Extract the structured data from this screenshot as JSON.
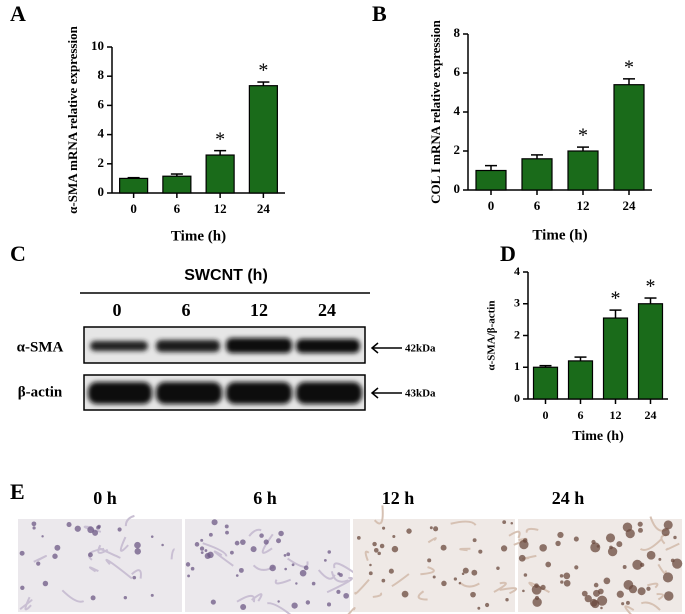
{
  "chart_data": [
    {
      "type": "bar",
      "y_label": "α-SMA mRNA relative expression",
      "x_label": "Time (h)",
      "categories": [
        "0",
        "6",
        "12",
        "24"
      ],
      "values": [
        1.0,
        1.15,
        2.6,
        7.35
      ],
      "errors": [
        0.05,
        0.15,
        0.3,
        0.25
      ],
      "significance": [
        null,
        null,
        "*",
        "*"
      ],
      "color": "#1a6b1a",
      "ylim": [
        0,
        10
      ],
      "yticks": [
        0,
        2,
        4,
        6,
        8,
        10
      ],
      "grid": false
    },
    {
      "type": "bar",
      "y_label": "COL I mRNA relative expression",
      "x_label": "Time (h)",
      "categories": [
        "0",
        "6",
        "12",
        "24"
      ],
      "values": [
        1.0,
        1.6,
        2.0,
        5.4
      ],
      "errors": [
        0.25,
        0.2,
        0.2,
        0.3
      ],
      "significance": [
        null,
        null,
        "*",
        "*"
      ],
      "color": "#1a6b1a",
      "ylim": [
        0,
        8
      ],
      "yticks": [
        0,
        2,
        4,
        6,
        8
      ],
      "grid": false
    },
    {
      "type": "bar",
      "y_label": "α-SMA/β-actin",
      "x_label": "Time (h)",
      "categories": [
        "0",
        "6",
        "12",
        "24"
      ],
      "values": [
        1.0,
        1.2,
        2.55,
        3.0
      ],
      "errors": [
        0.05,
        0.12,
        0.25,
        0.18
      ],
      "significance": [
        null,
        null,
        "*",
        "*"
      ],
      "color": "#1a6b1a",
      "ylim": [
        0,
        4
      ],
      "yticks": [
        0,
        1,
        2,
        3,
        4
      ],
      "grid": false
    }
  ],
  "panel_labels": [
    "A",
    "B",
    "C",
    "D",
    "E"
  ],
  "blot": {
    "title": "SWCNT (h)",
    "lanes": [
      "0",
      "6",
      "12",
      "24"
    ],
    "rows": [
      {
        "label": "α-SMA",
        "size": "42kDa"
      },
      {
        "label": "β-actin",
        "size": "43kDa"
      }
    ]
  },
  "images": {
    "labels": [
      "0 h",
      "6 h",
      "12 h",
      "24 h"
    ]
  }
}
